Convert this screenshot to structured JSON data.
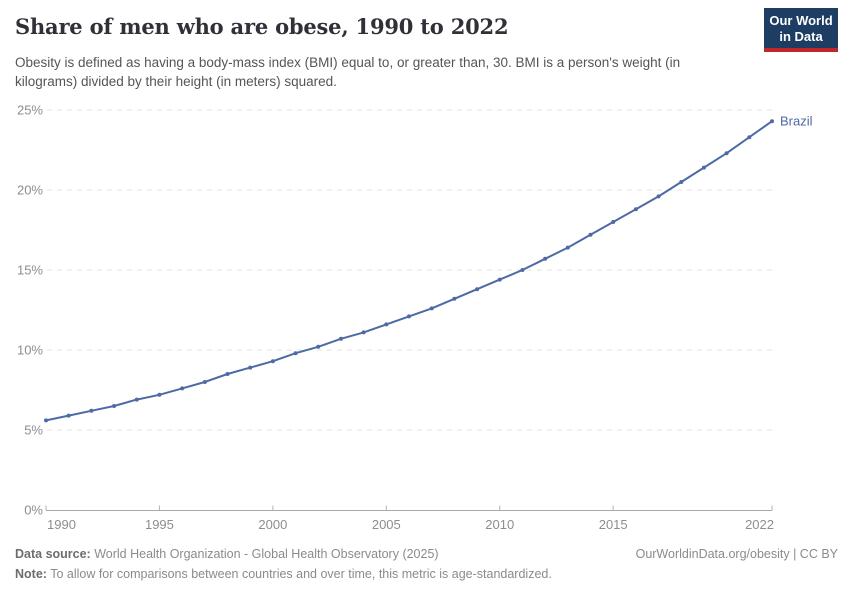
{
  "header": {
    "title": "Share of men who are obese, 1990 to 2022",
    "subtitle": "Obesity is defined as having a body-mass index (BMI) equal to, or greater than, 30. BMI is a person's weight (in kilograms) divided by their height (in meters) squared.",
    "logo": {
      "line1": "Our World",
      "line2": "in Data",
      "bg_color": "#1d3d63",
      "accent_color": "#c0272d"
    }
  },
  "chart_data": {
    "type": "line",
    "title": "Share of men who are obese, 1990 to 2022",
    "xlabel": "",
    "ylabel": "",
    "xlim": [
      1990,
      2022
    ],
    "ylim": [
      0,
      25
    ],
    "grid": "horizontal dashed",
    "legend_position": "end-of-line label",
    "x_ticks": [
      1990,
      1995,
      2000,
      2005,
      2010,
      2015,
      2022
    ],
    "y_ticks": [
      "0%",
      "5%",
      "10%",
      "15%",
      "20%",
      "25%"
    ],
    "series": [
      {
        "name": "Brazil",
        "color": "#4d6aa5",
        "x": [
          1990,
          1991,
          1992,
          1993,
          1994,
          1995,
          1996,
          1997,
          1998,
          1999,
          2000,
          2001,
          2002,
          2003,
          2004,
          2005,
          2006,
          2007,
          2008,
          2009,
          2010,
          2011,
          2012,
          2013,
          2014,
          2015,
          2016,
          2017,
          2018,
          2019,
          2020,
          2021,
          2022
        ],
        "values": [
          5.6,
          5.9,
          6.2,
          6.5,
          6.9,
          7.2,
          7.6,
          8.0,
          8.5,
          8.9,
          9.3,
          9.8,
          10.2,
          10.7,
          11.1,
          11.6,
          12.1,
          12.6,
          13.2,
          13.8,
          14.4,
          15.0,
          15.7,
          16.4,
          17.2,
          18.0,
          18.8,
          19.6,
          20.5,
          21.4,
          22.3,
          23.3,
          24.3
        ]
      }
    ]
  },
  "footer": {
    "datasource_label": "Data source:",
    "datasource_text": " World Health Organization - Global Health Observatory (2025)",
    "note_label": "Note:",
    "note_text": " To allow for comparisons between countries and over time, this metric is age-standardized.",
    "credit": "OurWorldinData.org/obesity | CC BY"
  }
}
